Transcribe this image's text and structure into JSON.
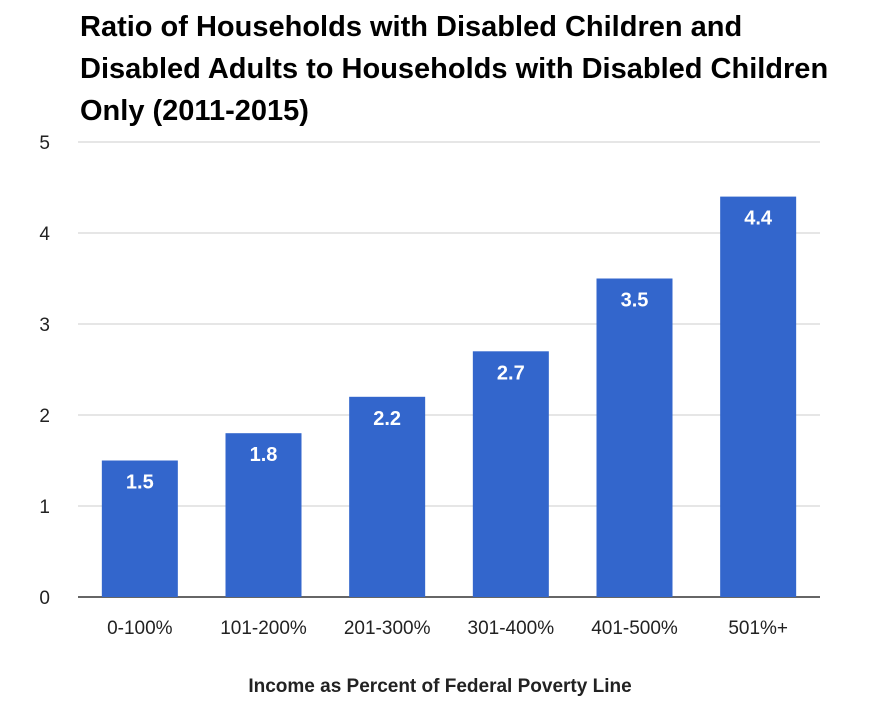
{
  "chart_data": {
    "type": "bar",
    "title": "Ratio of Households with Disabled Children and Disabled Adults to Households with Disabled Children Only (2011-2015)",
    "xlabel": "Income as Percent of Federal Poverty Line",
    "ylabel": "",
    "categories": [
      "0-100%",
      "101-200%",
      "201-300%",
      "301-400%",
      "401-500%",
      "501%+"
    ],
    "values": [
      1.5,
      1.8,
      2.2,
      2.7,
      3.5,
      4.4
    ],
    "data_labels": [
      "1.5",
      "1.8",
      "2.2",
      "2.7",
      "3.5",
      "4.4"
    ],
    "ylim": [
      0,
      5
    ],
    "yticks": [
      "0",
      "1",
      "2",
      "3",
      "4",
      "5"
    ],
    "grid": true,
    "legend": "none",
    "colors": {
      "bar": "#3366cc",
      "grid": "#cccccc",
      "baseline": "#333333",
      "bar_label": "#ffffff"
    }
  }
}
